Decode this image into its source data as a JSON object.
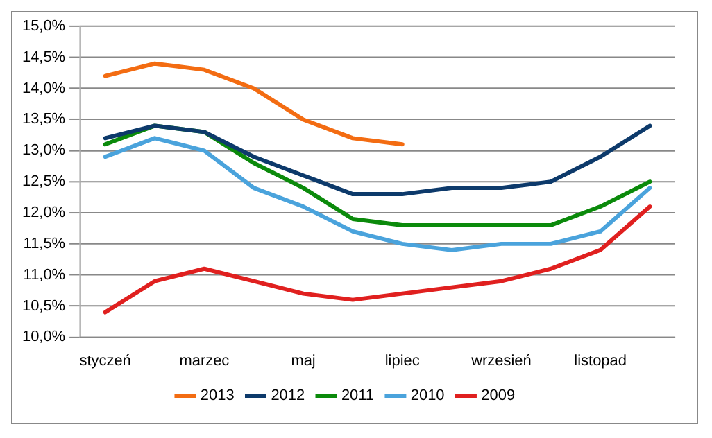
{
  "chart_data": {
    "type": "line",
    "categories": [
      "styczeń",
      null,
      "marzec",
      null,
      "maj",
      null,
      "lipiec",
      null,
      "wrzesień",
      null,
      "listopad",
      null
    ],
    "series": [
      {
        "name": "2013",
        "color": "#f36c12",
        "values": [
          14.2,
          14.4,
          14.3,
          14.0,
          13.5,
          13.2,
          13.1,
          null,
          null,
          null,
          null,
          null
        ]
      },
      {
        "name": "2012",
        "color": "#0d3a6b",
        "values": [
          13.2,
          13.4,
          13.3,
          12.9,
          12.6,
          12.3,
          12.3,
          12.4,
          12.4,
          12.5,
          12.9,
          13.4
        ]
      },
      {
        "name": "2011",
        "color": "#0b8a0b",
        "values": [
          13.1,
          13.4,
          13.3,
          12.8,
          12.4,
          11.9,
          11.8,
          11.8,
          11.8,
          11.8,
          12.1,
          12.5
        ]
      },
      {
        "name": "2010",
        "color": "#4aa3dc",
        "values": [
          12.9,
          13.2,
          13.0,
          12.4,
          12.1,
          11.7,
          11.5,
          11.4,
          11.5,
          11.5,
          11.7,
          12.4
        ]
      },
      {
        "name": "2009",
        "color": "#e0201f",
        "values": [
          10.4,
          10.9,
          11.1,
          10.9,
          10.7,
          10.6,
          10.7,
          10.8,
          10.9,
          11.1,
          11.4,
          12.1
        ]
      }
    ],
    "ylim": [
      10,
      15
    ],
    "yticks": [
      {
        "value": 10,
        "label": "10,0%"
      },
      {
        "value": 10.5,
        "label": "10,5%"
      },
      {
        "value": 11,
        "label": "11,0%"
      },
      {
        "value": 11.5,
        "label": "11,5%"
      },
      {
        "value": 12,
        "label": "12,0%"
      },
      {
        "value": 12.5,
        "label": "12,5%"
      },
      {
        "value": 13,
        "label": "13,0%"
      },
      {
        "value": 13.5,
        "label": "13,5%"
      },
      {
        "value": 14,
        "label": "14,0%"
      },
      {
        "value": 14.5,
        "label": "14,5%"
      },
      {
        "value": 15,
        "label": "15,0%"
      }
    ],
    "grid": "y",
    "legend": "bottom",
    "marker": "none",
    "line_style": "solid"
  }
}
